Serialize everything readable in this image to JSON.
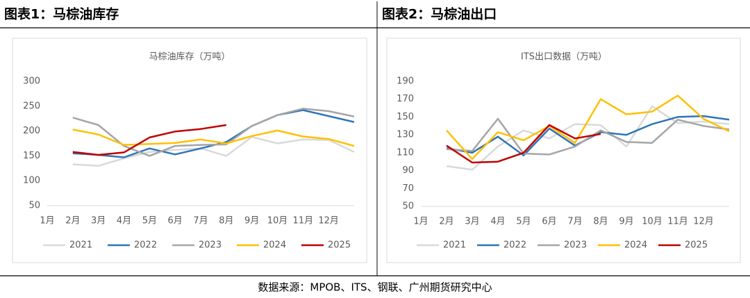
{
  "panels": [
    {
      "title": "图表1：马棕油库存"
    },
    {
      "title": "图表2：马棕油出口"
    }
  ],
  "source": "数据来源：MPOB、ITS、钢联、广州期货研究中心",
  "chart_data": [
    {
      "type": "line",
      "title": "马棕油库存（万吨）",
      "categories": [
        "1月",
        "2月",
        "3月",
        "4月",
        "5月",
        "6月",
        "7月",
        "8月",
        "9月",
        "10月",
        "11月",
        "12月"
      ],
      "ylim": [
        50,
        300
      ],
      "yticks": [
        50,
        100,
        150,
        200,
        250,
        300
      ],
      "grid": false,
      "legend": "bottom",
      "series": [
        {
          "name": "2021",
          "color": "#d9d9d9",
          "values": [
            133,
            130,
            145,
            158,
            162,
            165,
            150,
            188,
            175,
            183,
            182,
            158
          ]
        },
        {
          "name": "2022",
          "color": "#2e75b6",
          "values": [
            155,
            152,
            147,
            165,
            153,
            165,
            178,
            210,
            232,
            242,
            230,
            218
          ]
        },
        {
          "name": "2023",
          "color": "#a5a5a5",
          "values": [
            227,
            212,
            170,
            150,
            170,
            172,
            173,
            210,
            232,
            245,
            240,
            229
          ]
        },
        {
          "name": "2024",
          "color": "#ffc000",
          "values": [
            203,
            193,
            172,
            174,
            176,
            183,
            175,
            190,
            201,
            189,
            184,
            170
          ]
        },
        {
          "name": "2025",
          "color": "#c00000",
          "values": [
            158,
            152,
            157,
            187,
            199,
            204,
            212,
            null,
            null,
            null,
            null,
            null
          ]
        }
      ]
    },
    {
      "type": "line",
      "title": "ITS出口数据（万吨）",
      "categories": [
        "1月",
        "2月",
        "3月",
        "4月",
        "5月",
        "6月",
        "7月",
        "8月",
        "9月",
        "10月",
        "11月",
        "12月"
      ],
      "ylim": [
        50,
        190
      ],
      "yticks": [
        50,
        70,
        90,
        110,
        130,
        150,
        170,
        190
      ],
      "grid": false,
      "legend": "bottom",
      "series": [
        {
          "name": "2021",
          "color": "#d9d9d9",
          "values": [
            95,
            91,
            117,
            135,
            126,
            142,
            141,
            117,
            162,
            143,
            145,
            142
          ]
        },
        {
          "name": "2022",
          "color": "#2e75b6",
          "values": [
            115,
            110,
            128,
            107,
            137,
            118,
            133,
            130,
            142,
            150,
            151,
            147
          ]
        },
        {
          "name": "2023",
          "color": "#a5a5a5",
          "values": [
            114,
            112,
            148,
            109,
            108,
            117,
            135,
            122,
            121,
            147,
            140,
            136
          ]
        },
        {
          "name": "2024",
          "color": "#ffc000",
          "values": [
            135,
            103,
            133,
            124,
            140,
            121,
            170,
            153,
            156,
            174,
            148,
            134
          ]
        },
        {
          "name": "2025",
          "color": "#c00000",
          "values": [
            118,
            99,
            100,
            110,
            141,
            126,
            131,
            null,
            null,
            null,
            null,
            null
          ]
        }
      ]
    }
  ]
}
